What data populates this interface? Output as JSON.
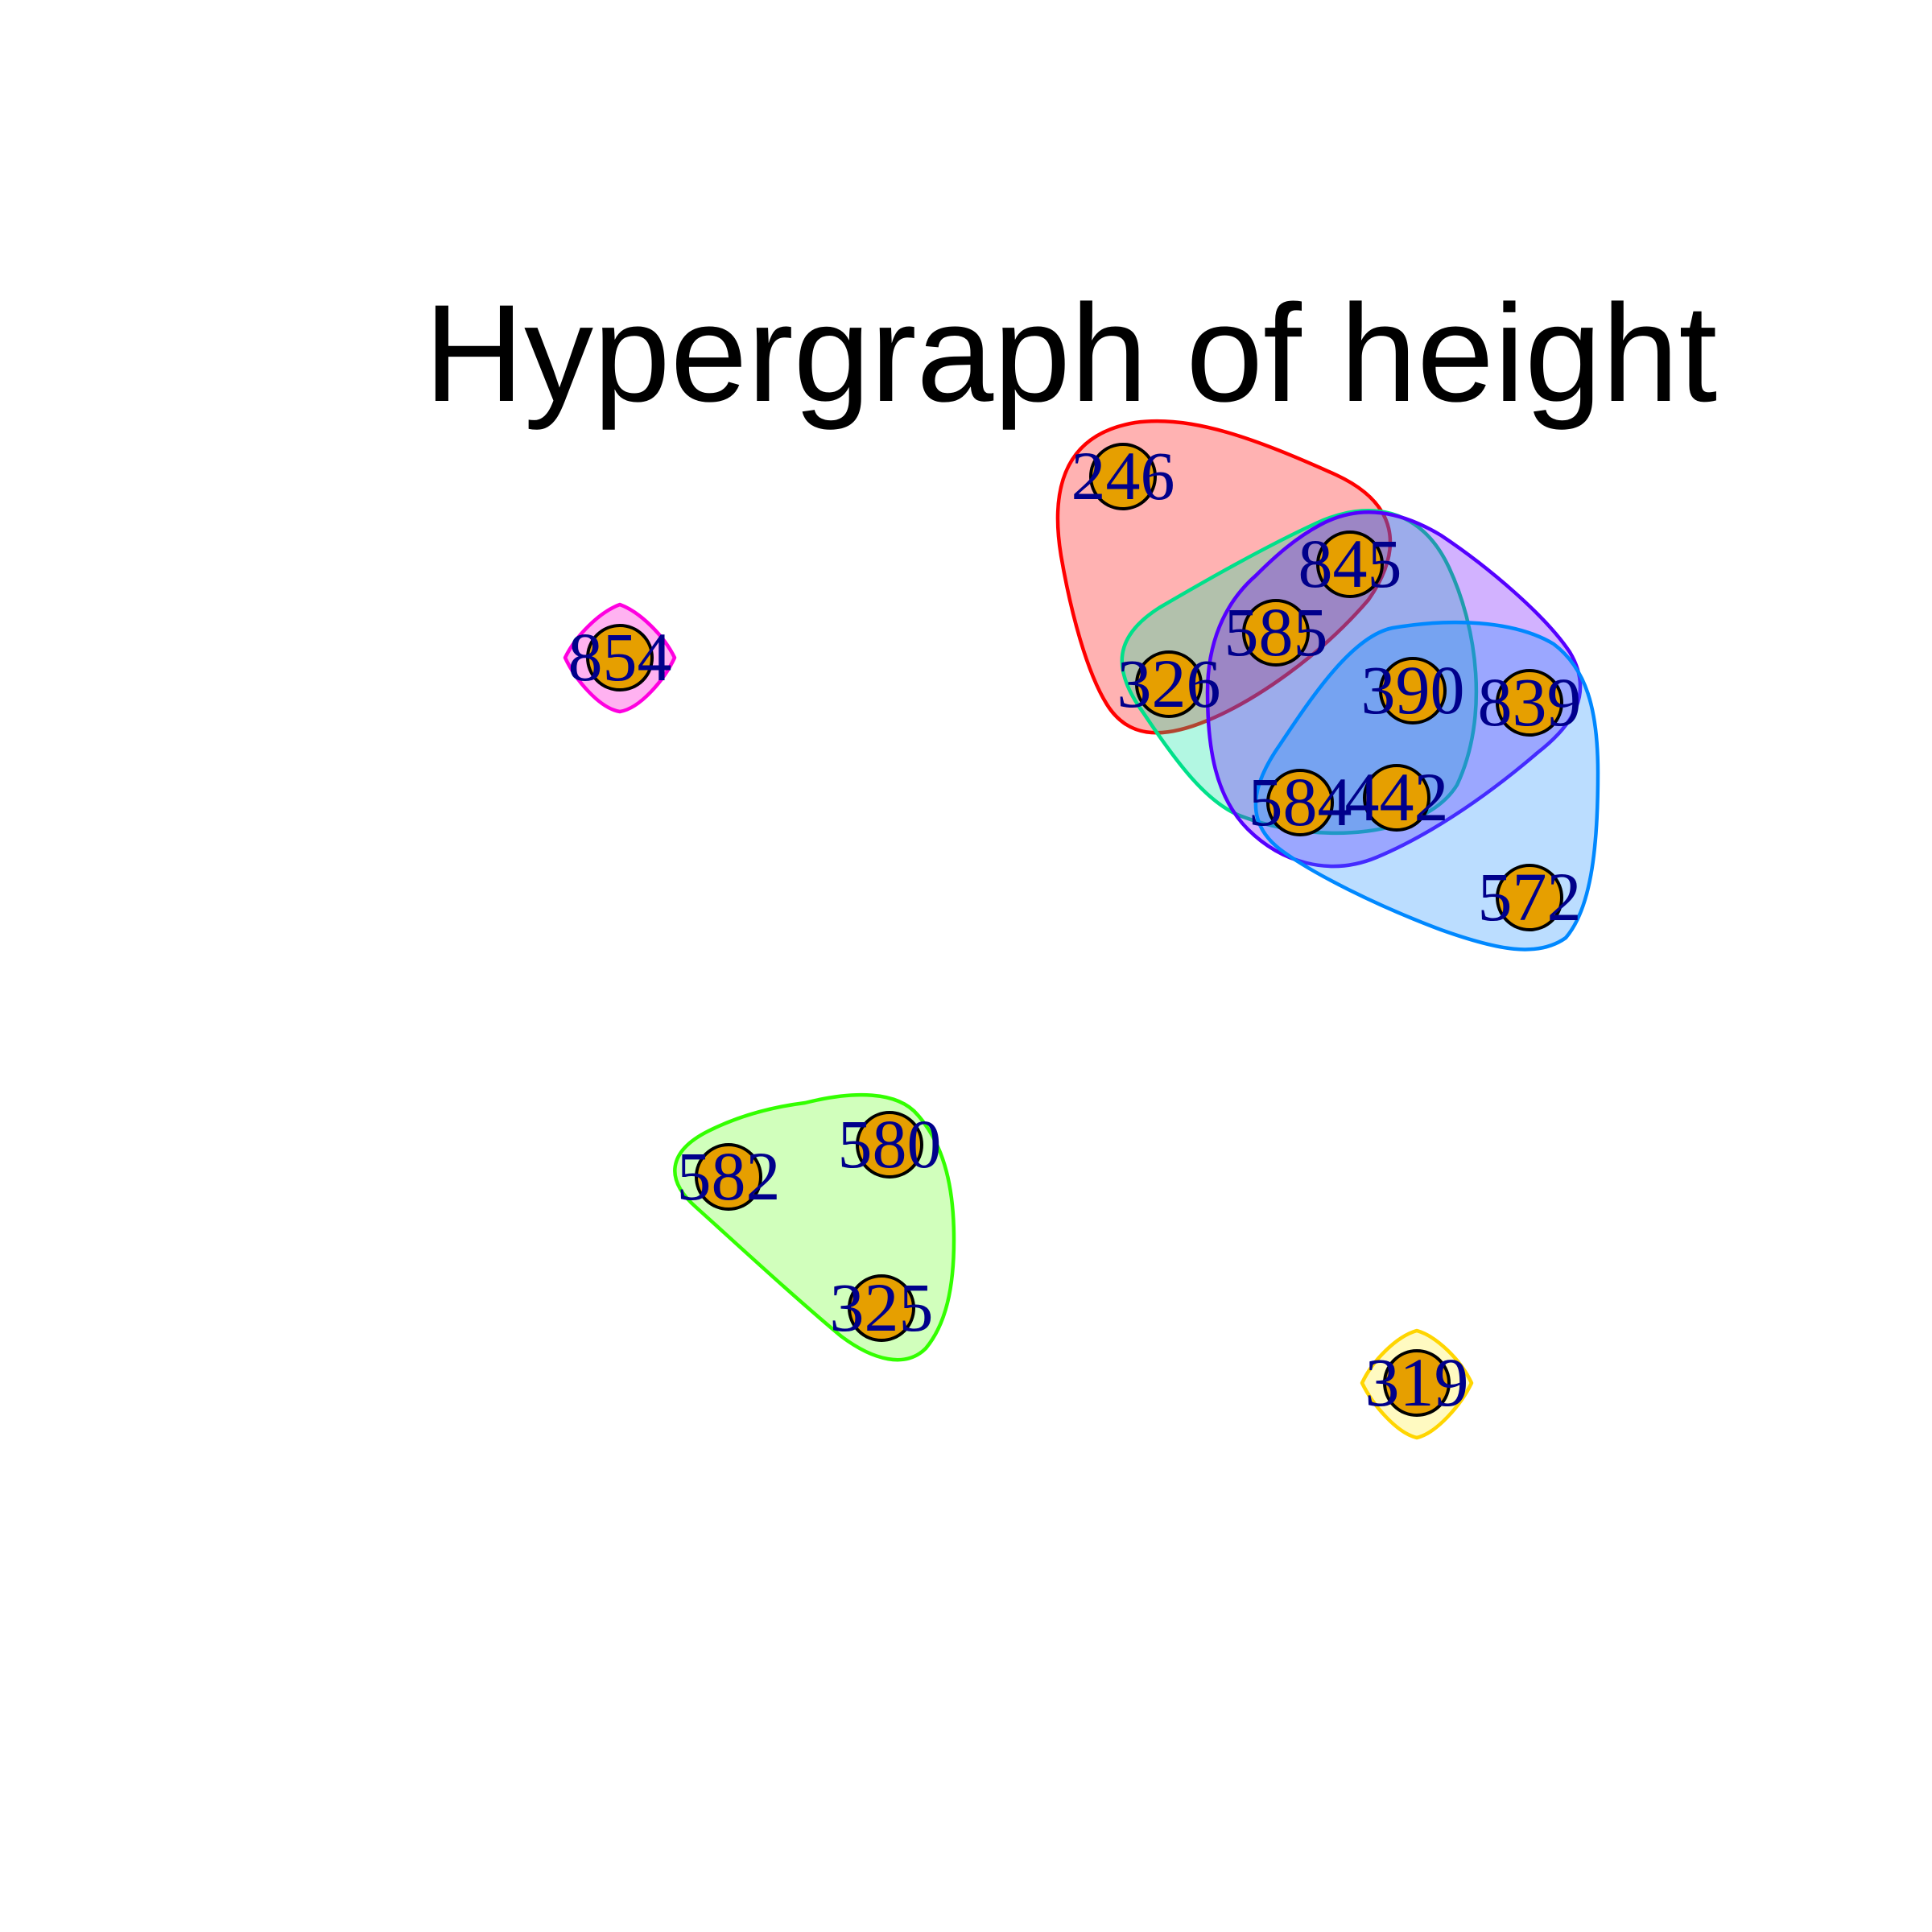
{
  "title": "Hypergraph of height",
  "colors": {
    "node_fill": "#E69F00",
    "node_border": "#000000",
    "label": "#00008B",
    "background": "#FFFFFF"
  },
  "nodes": [
    {
      "id": "246",
      "label": "246"
    },
    {
      "id": "845",
      "label": "845"
    },
    {
      "id": "585",
      "label": "585"
    },
    {
      "id": "326",
      "label": "326"
    },
    {
      "id": "390",
      "label": "390"
    },
    {
      "id": "839",
      "label": "839"
    },
    {
      "id": "584",
      "label": "584"
    },
    {
      "id": "442",
      "label": "442"
    },
    {
      "id": "572",
      "label": "572"
    },
    {
      "id": "854",
      "label": "854"
    },
    {
      "id": "580",
      "label": "580"
    },
    {
      "id": "582",
      "label": "582"
    },
    {
      "id": "325",
      "label": "325"
    },
    {
      "id": "319",
      "label": "319"
    }
  ],
  "hyperedges": [
    {
      "id": "edge-red",
      "members": [
        "246",
        "845",
        "585",
        "326"
      ],
      "stroke": "#FF0000",
      "fill": "#FF0000"
    },
    {
      "id": "edge-green-teal",
      "members": [
        "845",
        "585",
        "326",
        "390",
        "584",
        "442"
      ],
      "stroke": "#00E08A",
      "fill": "#00E5A0"
    },
    {
      "id": "edge-violet",
      "members": [
        "845",
        "585",
        "390",
        "839",
        "584",
        "442"
      ],
      "stroke": "#5500FF",
      "fill": "#6A00FF"
    },
    {
      "id": "edge-azure",
      "members": [
        "390",
        "839",
        "584",
        "442",
        "572"
      ],
      "stroke": "#0088FF",
      "fill": "#1E90FF"
    },
    {
      "id": "edge-magenta",
      "members": [
        "854"
      ],
      "stroke": "#FF00E0",
      "fill": "#FF00D0"
    },
    {
      "id": "edge-lime",
      "members": [
        "580",
        "582",
        "325"
      ],
      "stroke": "#33FF00",
      "fill": "#66FF22"
    },
    {
      "id": "edge-yellow",
      "members": [
        "319"
      ],
      "stroke": "#FFD500",
      "fill": "#FFEE33"
    }
  ]
}
